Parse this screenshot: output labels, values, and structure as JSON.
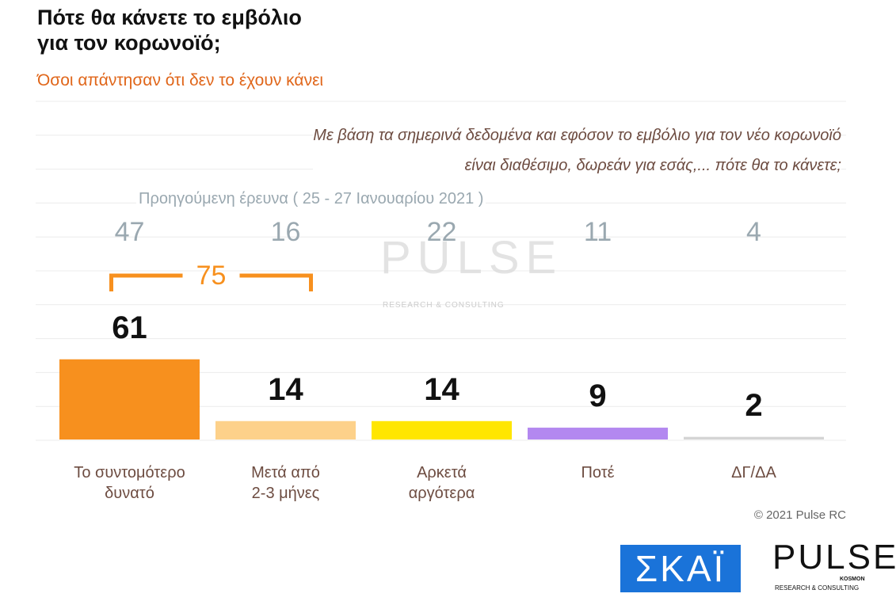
{
  "chart_data": {
    "type": "bar",
    "title": "Πότε θα κάνετε το εμβόλιο\nγια τον κορωνοϊό;",
    "subtitle": "Όσοι απάντησαν ότι δεν το έχουν κάνει",
    "question": "Με βάση τα σημερινά δεδομένα και εφόσον το εμβόλιο για τον νέο κορωνοϊό\nείναι διαθέσιμο, δωρεάν για εσάς,... πότε θα το κάνετε;",
    "categories": [
      "Το συντομότερο\nδυνατό",
      "Μετά από\n2-3 μήνες",
      "Αρκετά\nαργότερα",
      "Ποτέ",
      "ΔΓ/ΔΑ"
    ],
    "values": [
      61,
      14,
      14,
      9,
      2
    ],
    "colors": [
      "#f7901e",
      "#fdd18a",
      "#ffe600",
      "#b388f0",
      "#d4d4d4"
    ],
    "previous_survey": {
      "label": "Προηγούμενη έρευνα ( 25 - 27 Ιανουαρίου 2021 )",
      "values": [
        47,
        16,
        22,
        11,
        4
      ]
    },
    "bracket": {
      "value": 75,
      "color": "#f7901e"
    },
    "copyright": "© 2021 Pulse RC",
    "logos": {
      "skai": "ΣΚΑΪ",
      "pulse": "PULSE",
      "pulse_sub": "RESEARCH & CONSULTING",
      "pulse_tag": "KOSMON"
    }
  }
}
